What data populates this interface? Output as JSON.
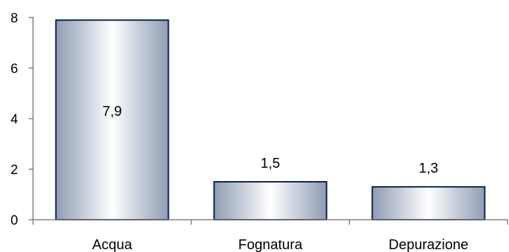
{
  "chart_data": {
    "type": "bar",
    "categories": [
      "Acqua",
      "Fognatura",
      "Depurazione"
    ],
    "values": [
      7.9,
      1.5,
      1.3
    ],
    "value_labels": [
      "7,9",
      "1,5",
      "1,3"
    ],
    "title": "",
    "xlabel": "",
    "ylabel": "",
    "ylim": [
      0,
      8
    ],
    "yticks": [
      0,
      2,
      4,
      6,
      8
    ],
    "ytick_labels": [
      "0",
      "2",
      "4",
      "6",
      "8"
    ],
    "grid": false,
    "legend": "none",
    "colors": {
      "bar_edge": "#0a1f4a",
      "bar_light": "#ffffff",
      "bar_dark": "#8e9cb3",
      "axis": "#7f7f7f"
    }
  }
}
